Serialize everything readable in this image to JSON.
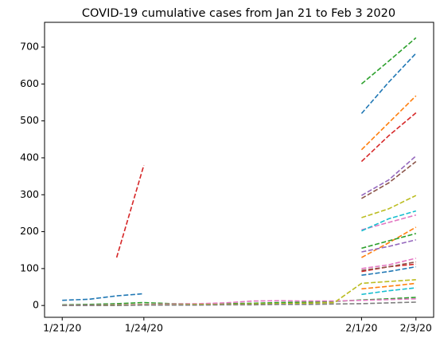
{
  "chart_data": {
    "type": "line",
    "title": "COVID-19 cumulative cases from Jan 21 to Feb 3 2020",
    "categories": [
      "1/21/20",
      null,
      null,
      "1/24/20",
      null,
      null,
      null,
      null,
      null,
      null,
      null,
      "2/1/20",
      null,
      "2/3/20"
    ],
    "ylim": [
      -32,
      767
    ],
    "yticks": [
      0,
      100,
      200,
      300,
      400,
      500,
      600,
      700
    ],
    "line_style": "dashed",
    "series": [
      {
        "color": "#1f77b4",
        "values": [
          14,
          17,
          26,
          32,
          null,
          null,
          null,
          null,
          null,
          null,
          null,
          520,
          605,
          683
        ]
      },
      {
        "color": "#ff7f0e",
        "values": [
          null,
          null,
          null,
          null,
          null,
          null,
          null,
          null,
          null,
          null,
          null,
          422,
          495,
          568
        ]
      },
      {
        "color": "#2ca02c",
        "values": [
          null,
          null,
          null,
          null,
          null,
          null,
          null,
          null,
          null,
          null,
          null,
          600,
          662,
          725
        ]
      },
      {
        "color": "#d62728",
        "values": [
          null,
          null,
          130,
          380,
          null,
          null,
          null,
          null,
          null,
          null,
          null,
          390,
          460,
          522
        ]
      },
      {
        "color": "#9467bd",
        "values": [
          null,
          null,
          null,
          null,
          null,
          null,
          null,
          null,
          null,
          null,
          null,
          298,
          340,
          405
        ]
      },
      {
        "color": "#8c564b",
        "values": [
          null,
          null,
          null,
          null,
          null,
          null,
          null,
          null,
          null,
          null,
          null,
          290,
          332,
          390
        ]
      },
      {
        "color": "#e377c2",
        "values": [
          null,
          null,
          null,
          null,
          null,
          null,
          null,
          null,
          null,
          null,
          null,
          205,
          225,
          245
        ]
      },
      {
        "color": "#bcbd22",
        "values": [
          null,
          null,
          null,
          null,
          null,
          null,
          null,
          null,
          null,
          null,
          null,
          238,
          262,
          298
        ]
      },
      {
        "color": "#17becf",
        "values": [
          null,
          null,
          null,
          null,
          null,
          null,
          null,
          null,
          null,
          null,
          null,
          202,
          235,
          256
        ]
      },
      {
        "color": "#1f77b4",
        "values": [
          null,
          null,
          null,
          null,
          null,
          null,
          null,
          null,
          null,
          null,
          null,
          82,
          92,
          105
        ]
      },
      {
        "color": "#ff7f0e",
        "values": [
          null,
          null,
          null,
          null,
          null,
          null,
          null,
          null,
          null,
          null,
          null,
          130,
          170,
          212
        ]
      },
      {
        "color": "#2ca02c",
        "values": [
          null,
          null,
          null,
          null,
          null,
          null,
          null,
          null,
          null,
          null,
          null,
          155,
          175,
          195
        ]
      },
      {
        "color": "#d62728",
        "values": [
          null,
          null,
          null,
          null,
          null,
          null,
          null,
          null,
          null,
          null,
          null,
          92,
          105,
          112
        ]
      },
      {
        "color": "#9467bd",
        "values": [
          null,
          null,
          null,
          null,
          null,
          null,
          null,
          null,
          null,
          null,
          null,
          145,
          160,
          178
        ]
      },
      {
        "color": "#8c564b",
        "values": [
          null,
          null,
          null,
          null,
          null,
          null,
          null,
          null,
          null,
          null,
          null,
          95,
          105,
          118
        ]
      },
      {
        "color": "#e377c2",
        "values": [
          null,
          null,
          null,
          null,
          null,
          null,
          null,
          null,
          null,
          null,
          null,
          100,
          110,
          128
        ]
      },
      {
        "color": "#2ca02c",
        "values": [
          2,
          3,
          5,
          8,
          5,
          4,
          5,
          6,
          8,
          9,
          11,
          15,
          18,
          22
        ]
      },
      {
        "color": "#e377c2",
        "values": [
          1,
          1,
          2,
          3,
          4,
          5,
          7,
          12,
          13,
          12,
          12,
          14,
          16,
          18
        ]
      },
      {
        "color": "#bcbd22",
        "values": [
          0,
          0,
          1,
          2,
          2,
          3,
          3,
          4,
          5,
          6,
          8,
          60,
          65,
          70
        ]
      },
      {
        "color": "#ff7f0e",
        "values": [
          null,
          null,
          null,
          null,
          null,
          null,
          null,
          null,
          null,
          null,
          null,
          45,
          52,
          60
        ]
      },
      {
        "color": "#17becf",
        "values": [
          null,
          null,
          null,
          null,
          null,
          null,
          null,
          null,
          null,
          null,
          null,
          30,
          40,
          48
        ]
      },
      {
        "color": "#7f7f7f",
        "values": [
          0,
          0,
          0,
          1,
          1,
          1,
          2,
          2,
          3,
          3,
          4,
          5,
          7,
          9
        ]
      }
    ]
  }
}
